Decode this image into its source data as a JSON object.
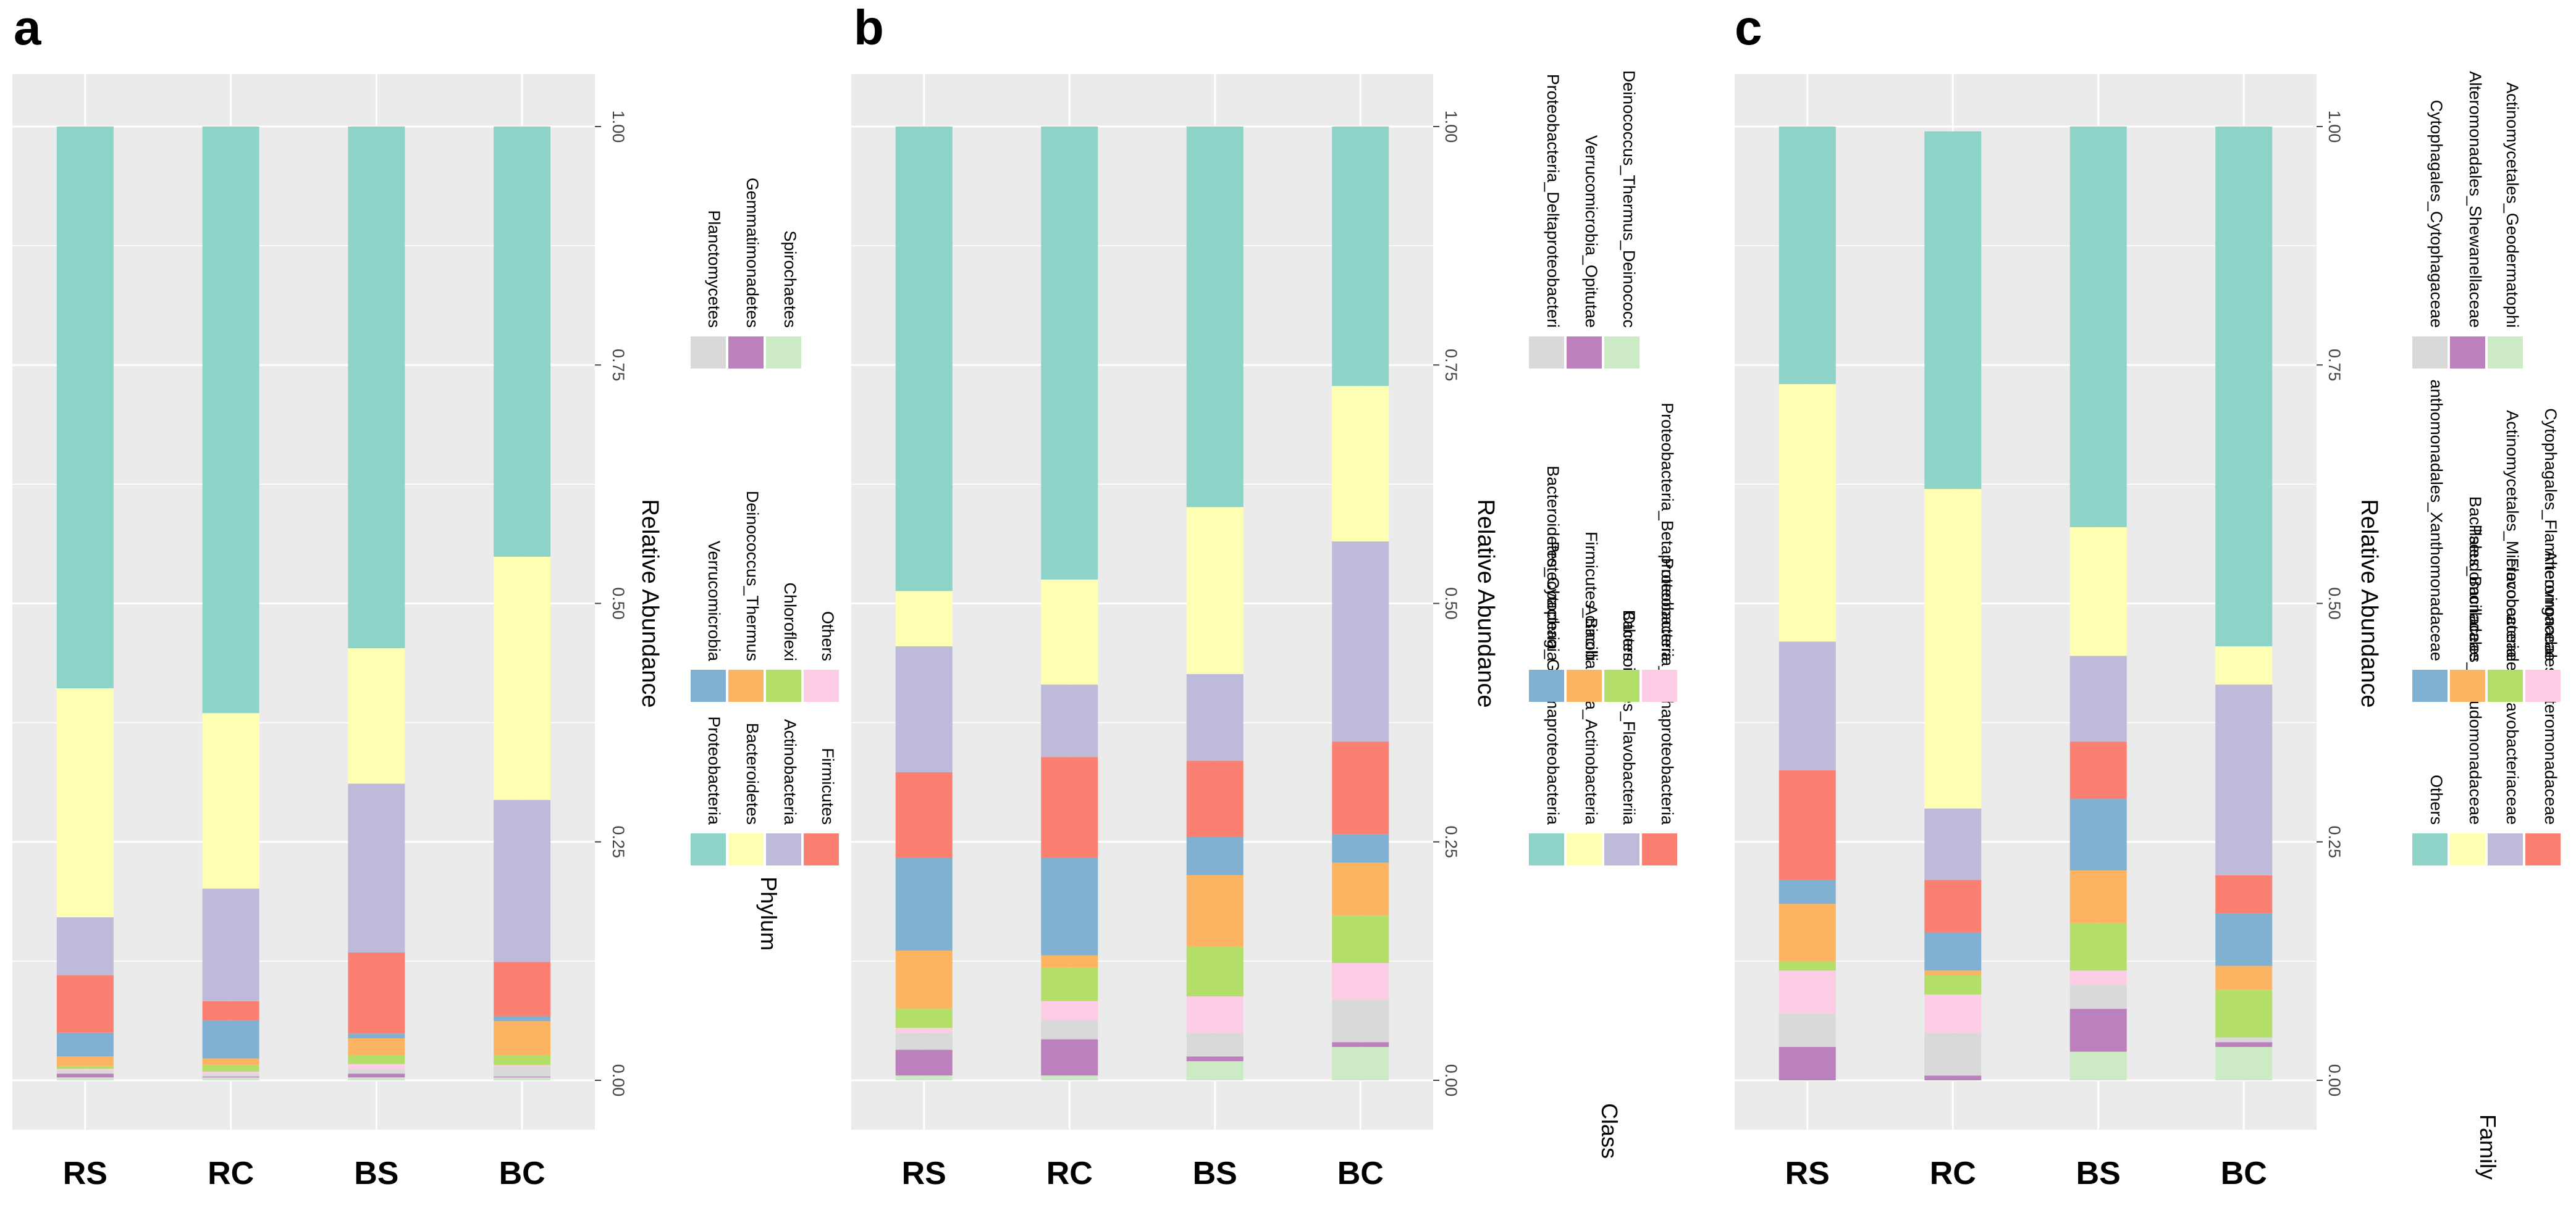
{
  "chart_data": [
    {
      "type": "bar",
      "stacked": true,
      "panel_label": "a",
      "categories": [
        "RS",
        "RC",
        "BS",
        "BC"
      ],
      "ylabel": "Relative Abundance",
      "ylim": [
        0,
        1
      ],
      "yticks": [
        "0.00",
        "0.25",
        "0.50",
        "0.75",
        "1.00"
      ],
      "legend_title": "Phylum",
      "series": [
        {
          "name": "Spirochaetes",
          "color": "#ccebc5",
          "values": [
            0.003,
            0.003,
            0.003,
            0.003
          ]
        },
        {
          "name": "Gemmatimonadetes",
          "color": "#bc80bd",
          "values": [
            0.004,
            0.001,
            0.004,
            0.001
          ]
        },
        {
          "name": "Planctomycetes",
          "color": "#d9d9d9",
          "values": [
            0.003,
            0.003,
            0.005,
            0.01
          ]
        },
        {
          "name": "Others",
          "color": "#fccde5",
          "values": [
            0.002,
            0.002,
            0.005,
            0.002
          ]
        },
        {
          "name": "Chloroflexi",
          "color": "#b3de69",
          "values": [
            0.003,
            0.007,
            0.009,
            0.01
          ]
        },
        {
          "name": "Deinococcus_Thermus",
          "color": "#fdb462",
          "values": [
            0.01,
            0.007,
            0.018,
            0.036
          ]
        },
        {
          "name": "Verrucomicrobia",
          "color": "#80b1d3",
          "values": [
            0.025,
            0.04,
            0.005,
            0.005
          ]
        },
        {
          "name": "Firmicutes",
          "color": "#fb8072",
          "values": [
            0.06,
            0.02,
            0.085,
            0.057
          ]
        },
        {
          "name": "Actinobacteria",
          "color": "#bebada",
          "values": [
            0.061,
            0.118,
            0.177,
            0.17
          ]
        },
        {
          "name": "Bacteroidetes",
          "color": "#ffffb3",
          "values": [
            0.24,
            0.184,
            0.142,
            0.255
          ]
        },
        {
          "name": "Proteobacteria",
          "color": "#8dd3c7",
          "values": [
            0.589,
            0.615,
            0.547,
            0.451
          ]
        }
      ],
      "legend_rows": [
        [
          "Proteobacteria",
          "Bacteroidetes",
          "Actinobacteria",
          "Firmicutes"
        ],
        [
          "Verrucomicrobia",
          "Deinococcus_Thermus",
          "Chloroflexi",
          "Others"
        ],
        [
          "Planctomycetes",
          "Gemmatimonadetes",
          "Spirochaetes"
        ]
      ]
    },
    {
      "type": "bar",
      "stacked": true,
      "panel_label": "b",
      "categories": [
        "RS",
        "RC",
        "BS",
        "BC"
      ],
      "ylabel": "Relative Abundance",
      "ylim": [
        0,
        1
      ],
      "yticks": [
        "0.00",
        "0.25",
        "0.50",
        "0.75",
        "1.00"
      ],
      "legend_title": "Class",
      "series": [
        {
          "name": "Deinococcus_Thermus_Deinococci",
          "color": "#ccebc5",
          "values": [
            0.005,
            0.005,
            0.02,
            0.035
          ]
        },
        {
          "name": "Verrucomicrobia_Opitutae",
          "color": "#bc80bd",
          "values": [
            0.027,
            0.038,
            0.005,
            0.005
          ]
        },
        {
          "name": "Proteobacteria_Deltaproteobacteria",
          "color": "#d9d9d9",
          "values": [
            0.018,
            0.02,
            0.025,
            0.045
          ]
        },
        {
          "name": "Proteobacteria_Betaproteobacteria",
          "color": "#fccde5",
          "values": [
            0.005,
            0.02,
            0.038,
            0.038
          ]
        },
        {
          "name": "Others",
          "color": "#b3de69",
          "values": [
            0.02,
            0.035,
            0.052,
            0.05
          ]
        },
        {
          "name": "Firmicutes_Bacilli",
          "color": "#fdb462",
          "values": [
            0.061,
            0.013,
            0.075,
            0.055
          ]
        },
        {
          "name": "Bacteroidetes_Cytophagia",
          "color": "#80b1d3",
          "values": [
            0.097,
            0.102,
            0.04,
            0.03
          ]
        },
        {
          "name": "Proteobacteria_Alphaproteobacteria",
          "color": "#fb8072",
          "values": [
            0.09,
            0.106,
            0.08,
            0.097
          ]
        },
        {
          "name": "Bacteroidetes_Flavobacteriia",
          "color": "#bebada",
          "values": [
            0.132,
            0.076,
            0.091,
            0.21
          ]
        },
        {
          "name": "Actinobacteria_Actinobacteria",
          "color": "#ffffb3",
          "values": [
            0.058,
            0.11,
            0.175,
            0.163
          ]
        },
        {
          "name": "Proteobacteria_Gammaproteobacteria",
          "color": "#8dd3c7",
          "values": [
            0.487,
            0.475,
            0.399,
            0.272
          ]
        }
      ],
      "legend_rows": [
        [
          "Proteobacteria_Gammaproteobacteria",
          "Actinobacteria_Actinobacteria",
          "Bacteroidetes_Flavobacteriia",
          "Proteobacteria_Alphaproteobacteria"
        ],
        [
          "Bacteroidetes_Cytophagia",
          "Firmicutes_Bacilli",
          "Others",
          "Proteobacteria_Betaproteobacteria"
        ],
        [
          "Proteobacteria_Deltaproteobacteri",
          "Verrucomicrobia_Opitutae",
          "Deinococcus_Thermus_Deinococc"
        ]
      ]
    },
    {
      "type": "bar",
      "stacked": true,
      "panel_label": "c",
      "categories": [
        "RS",
        "RC",
        "BS",
        "BC"
      ],
      "ylabel": "Relative Abundance",
      "ylim": [
        0,
        1
      ],
      "yticks": [
        "0.00",
        "0.25",
        "0.50",
        "0.75",
        "1.00"
      ],
      "legend_title": "Family",
      "series": [
        {
          "name": "Actinomycetales_Geodermatophi",
          "color": "#ccebc5",
          "values": [
            0.0,
            0.0,
            0.03,
            0.035
          ]
        },
        {
          "name": "Alteromonadales_Shewanellaceae",
          "color": "#bc80bd",
          "values": [
            0.035,
            0.005,
            0.045,
            0.005
          ]
        },
        {
          "name": "Cytophagales_Cytophagaceae",
          "color": "#d9d9d9",
          "values": [
            0.035,
            0.045,
            0.025,
            0.005
          ]
        },
        {
          "name": "Cytophagales_Flammeovirgaceae",
          "color": "#fccde5",
          "values": [
            0.045,
            0.04,
            0.015,
            0.0
          ]
        },
        {
          "name": "Actinomycetales_Micrococcaceae",
          "color": "#b3de69",
          "values": [
            0.01,
            0.02,
            0.05,
            0.05
          ]
        },
        {
          "name": "Bacillales_Bacillaceae",
          "color": "#fdb462",
          "values": [
            0.06,
            0.005,
            0.055,
            0.025
          ]
        },
        {
          "name": "anthomonadales_Xanthomonadaceae",
          "color": "#80b1d3",
          "values": [
            0.025,
            0.04,
            0.075,
            0.055
          ]
        },
        {
          "name": "Alteromonadales_Alteromonadaceae",
          "color": "#fb8072",
          "values": [
            0.115,
            0.055,
            0.06,
            0.04
          ]
        },
        {
          "name": "Flavobacteriales_Flavobacteriaceae",
          "color": "#bebada",
          "values": [
            0.135,
            0.075,
            0.09,
            0.2
          ]
        },
        {
          "name": "Pseudomonadales_Pseudomonadaceae",
          "color": "#ffffb3",
          "values": [
            0.27,
            0.335,
            0.135,
            0.04
          ]
        },
        {
          "name": "Others",
          "color": "#8dd3c7",
          "values": [
            0.27,
            0.375,
            0.42,
            0.545
          ]
        }
      ],
      "legend_rows": [
        [
          "Others",
          "Pseudomonadales_Pseudomonadaceae",
          "Flavobacteriales_Flavobacteriaceae",
          "Alteromonadales_Alteromonadaceae"
        ],
        [
          "anthomonadales_Xanthomonadaceae",
          "Bacillales_Bacillaceae",
          "Actinomycetales_Micrococcaceae",
          "Cytophagales_Flammeovirgaceae"
        ],
        [
          "Cytophagales_Cytophagaceae",
          "Alteromonadales_Shewanellaceae",
          "Actinomycetales_Geodermatophi"
        ]
      ]
    }
  ]
}
